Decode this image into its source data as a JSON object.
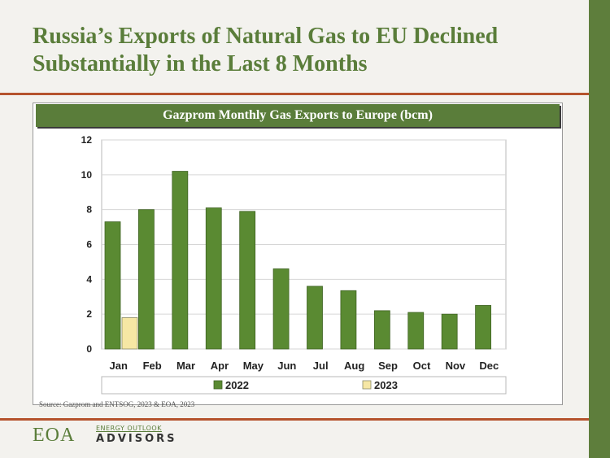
{
  "headline": "Russia’s Exports of Natural Gas to EU Declined Substantially in the Last 8 Months",
  "source": "Source:  Gazprom and ENTSOG, 2023 & EOA, 2023",
  "logo": {
    "mark": "EOA",
    "line1": "ENERGY OUTLOOK",
    "line2": "ADVISORS"
  },
  "colors": {
    "accent_green": "#5a7d3a",
    "rule_orange": "#b5532d",
    "series_2022": "#5a8a32",
    "series_2023": "#f6e7a4"
  },
  "chart_data": {
    "type": "bar",
    "title": "Gazprom Monthly  Gas Exports to Europe (bcm)",
    "categories": [
      "Jan",
      "Feb",
      "Mar",
      "Apr",
      "May",
      "Jun",
      "Jul",
      "Aug",
      "Sep",
      "Oct",
      "Nov",
      "Dec"
    ],
    "series": [
      {
        "name": "2022",
        "values": [
          7.3,
          8.0,
          10.2,
          8.1,
          7.9,
          4.6,
          3.6,
          3.35,
          2.2,
          2.1,
          2.0,
          2.5
        ]
      },
      {
        "name": "2023",
        "values": [
          1.8,
          null,
          null,
          null,
          null,
          null,
          null,
          null,
          null,
          null,
          null,
          null
        ]
      }
    ],
    "yticks": [
      "0",
      "2",
      "4",
      "6",
      "8",
      "10",
      "12"
    ],
    "ylim": [
      0,
      12
    ],
    "grid": true,
    "legend": "bottom"
  }
}
